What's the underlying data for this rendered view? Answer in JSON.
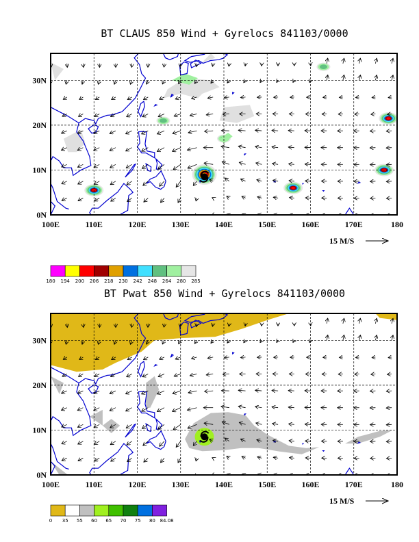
{
  "chart_data": [
    {
      "type": "map",
      "title": "BT CLAUS 850 Wind + Gyrelocs 841103/0000",
      "xlabel": "",
      "ylabel": "",
      "x_ticks": [
        "100E",
        "110E",
        "120E",
        "130E",
        "140E",
        "150E",
        "160E",
        "170E",
        "180"
      ],
      "y_ticks": [
        "0N",
        "10N",
        "20N",
        "30N"
      ],
      "xlim": [
        100,
        180
      ],
      "ylim": [
        0,
        36
      ],
      "grid": true,
      "vector_scale_label": "15 M/S",
      "colorbar": {
        "labels": [
          "180",
          "194",
          "200",
          "206",
          "218",
          "230",
          "242",
          "248",
          "264",
          "280",
          "285"
        ],
        "colors": [
          "#ff00ff",
          "#ffff00",
          "#ff0000",
          "#a00000",
          "#e0a000",
          "#0070e0",
          "#40e0ff",
          "#60c080",
          "#a0f0a0",
          "#e6e6e6"
        ]
      },
      "cloud_cells": [
        {
          "lon": 135.5,
          "lat": 9,
          "intensity": 3
        },
        {
          "lon": 110,
          "lat": 5.5,
          "intensity": 2
        },
        {
          "lon": 156,
          "lat": 6,
          "intensity": 2
        },
        {
          "lon": 177,
          "lat": 10,
          "intensity": 2
        },
        {
          "lon": 178,
          "lat": 21.5,
          "intensity": 2
        },
        {
          "lon": 126,
          "lat": 21,
          "intensity": 1
        },
        {
          "lon": 140,
          "lat": 17,
          "intensity": 1
        },
        {
          "lon": 163,
          "lat": 33,
          "intensity": 1
        }
      ],
      "gyre_locations": [
        {
          "lon": 135.5,
          "lat": 8.5
        }
      ]
    },
    {
      "type": "map",
      "title": "BT Pwat 850 Wind + Gyrelocs 841103/0000",
      "xlabel": "",
      "ylabel": "",
      "x_ticks": [
        "100E",
        "110E",
        "120E",
        "130E",
        "140E",
        "150E",
        "160E",
        "170E",
        "180"
      ],
      "y_ticks": [
        "0N",
        "10N",
        "20N",
        "30N"
      ],
      "xlim": [
        100,
        180
      ],
      "ylim": [
        0,
        36
      ],
      "grid": true,
      "vector_scale_label": "15 M/S",
      "colorbar": {
        "labels": [
          "0",
          "35",
          "55",
          "60",
          "65",
          "70",
          "75",
          "80",
          "84.08"
        ],
        "colors": [
          "#e0b818",
          "#ffffff",
          "#c0c0c0",
          "#a0f020",
          "#40c000",
          "#108010",
          "#0070e0",
          "#8020e0"
        ]
      },
      "gyre_locations": [
        {
          "lon": 135.5,
          "lat": 8.5
        }
      ]
    }
  ]
}
